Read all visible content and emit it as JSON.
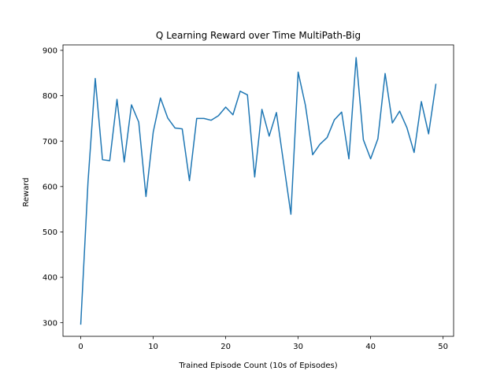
{
  "chart_data": {
    "type": "line",
    "title": "Q Learning Reward over Time MultiPath-Big",
    "xlabel": "Trained Episode Count (10s of Episodes)",
    "ylabel": "Reward",
    "xlim": [
      -2.45,
      51.45
    ],
    "ylim": [
      270,
      912
    ],
    "xticks": [
      "0",
      "10",
      "20",
      "30",
      "40",
      "50"
    ],
    "yticks": [
      "300",
      "400",
      "500",
      "600",
      "700",
      "800",
      "900"
    ],
    "grid": false,
    "legend": "none",
    "series": [
      {
        "color": "#1f77b4",
        "x": [
          0,
          1,
          2,
          3,
          4,
          5,
          6,
          7,
          8,
          9,
          10,
          11,
          12,
          13,
          14,
          15,
          16,
          17,
          18,
          19,
          20,
          21,
          22,
          23,
          24,
          25,
          26,
          27,
          28,
          29,
          30,
          31,
          32,
          33,
          34,
          35,
          36,
          37,
          38,
          39,
          40,
          41,
          42,
          43,
          44,
          45,
          46,
          47,
          48,
          49
        ],
        "y": [
          297,
          610,
          838,
          659,
          657,
          792,
          654,
          780,
          742,
          578,
          720,
          795,
          751,
          729,
          727,
          613,
          750,
          750,
          746,
          756,
          775,
          758,
          810,
          802,
          621,
          770,
          711,
          763,
          651,
          539,
          852,
          779,
          670,
          693,
          708,
          747,
          764,
          661,
          884,
          703,
          661,
          705,
          849,
          740,
          766,
          730,
          675,
          787,
          716,
          825
        ]
      }
    ]
  }
}
